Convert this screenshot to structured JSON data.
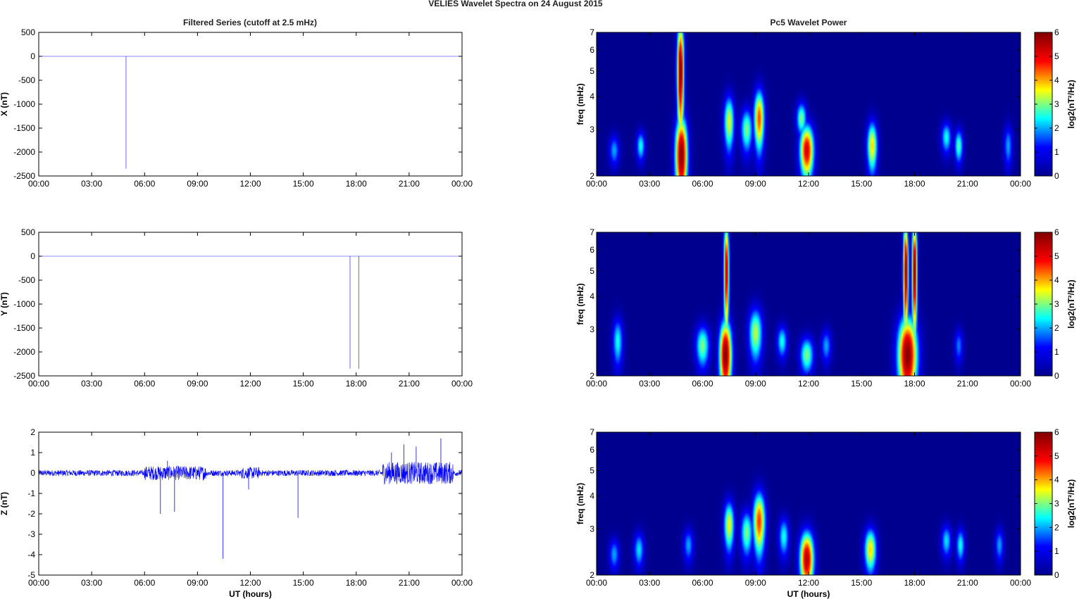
{
  "figure": {
    "title": "VELIES Wavelet Spectra on 24 August    2015",
    "left_title": "Filtered Series (cutoff at 2.5 mHz)",
    "right_title": "Pc5 Wavelet Power",
    "xlabel": "UT (hours)"
  },
  "colors": {
    "trace": "#0000ff",
    "background_spectrogram": "#00008f",
    "colormap": [
      "#00008f",
      "#0000ff",
      "#00ffff",
      "#ffff00",
      "#ff0000",
      "#800000"
    ]
  },
  "chart_data": [
    {
      "type": "line",
      "name": "x-series",
      "ylabel": "X (nT)",
      "xlim": [
        0,
        24
      ],
      "ylim": [
        -2500,
        500
      ],
      "xticks": [
        "00:00",
        "03:00",
        "06:00",
        "09:00",
        "12:00",
        "15:00",
        "18:00",
        "21:00",
        "00:00"
      ],
      "yticks": [
        "500",
        "0",
        "-500",
        "-1000",
        "-1500",
        "-2000",
        "-2500"
      ],
      "ytick_values": [
        500,
        0,
        -500,
        -1000,
        -1500,
        -2000,
        -2500
      ],
      "baseline": 0,
      "spikes": [
        {
          "x": 4.95,
          "y": -2350
        }
      ]
    },
    {
      "type": "line",
      "name": "y-series",
      "ylabel": "Y (nT)",
      "xlim": [
        0,
        24
      ],
      "ylim": [
        -2500,
        500
      ],
      "xticks": [
        "00:00",
        "03:00",
        "06:00",
        "09:00",
        "12:00",
        "15:00",
        "18:00",
        "21:00",
        "00:00"
      ],
      "yticks": [
        "500",
        "0",
        "-500",
        "-1000",
        "-1500",
        "-2000",
        "-2500"
      ],
      "ytick_values": [
        500,
        0,
        -500,
        -1000,
        -1500,
        -2000,
        -2500
      ],
      "baseline": 0,
      "spikes": [
        {
          "x": 17.65,
          "y": -2350
        },
        {
          "x": 18.15,
          "y": -2350
        }
      ]
    },
    {
      "type": "line",
      "name": "z-series",
      "ylabel": "Z (nT)",
      "xlabel": "UT (hours)",
      "xlim": [
        0,
        24
      ],
      "ylim": [
        -5,
        2
      ],
      "xticks": [
        "00:00",
        "03:00",
        "06:00",
        "09:00",
        "12:00",
        "15:00",
        "18:00",
        "21:00",
        "00:00"
      ],
      "yticks": [
        "2",
        "1",
        "0",
        "-1",
        "-2",
        "-3",
        "-4",
        "-5"
      ],
      "ytick_values": [
        2,
        1,
        0,
        -1,
        -2,
        -3,
        -4,
        -5
      ],
      "baseline": 0,
      "spikes": [
        {
          "x": 6.9,
          "y": -2.0
        },
        {
          "x": 7.7,
          "y": -1.9
        },
        {
          "x": 10.45,
          "y": -4.2
        },
        {
          "x": 14.7,
          "y": -2.2
        },
        {
          "x": 11.9,
          "y": -0.8
        },
        {
          "x": 7.3,
          "y": 0.6
        },
        {
          "x": 20.7,
          "y": 1.4
        },
        {
          "x": 21.4,
          "y": 1.3
        },
        {
          "x": 22.8,
          "y": 1.7
        },
        {
          "x": 20.0,
          "y": 1.0
        }
      ],
      "active_windows": [
        {
          "x0": 6.0,
          "x1": 9.5,
          "amplitude": 0.35
        },
        {
          "x0": 11.5,
          "x1": 12.5,
          "amplitude": 0.3
        },
        {
          "x0": 19.5,
          "x1": 23.5,
          "amplitude": 0.55
        }
      ],
      "noise_amplitude": 0.15
    },
    {
      "type": "heatmap",
      "name": "x-wavelet",
      "ylabel": "freq (mHz)",
      "colorbar_label": "log2(nT²/Hz)",
      "xlim": [
        0,
        24
      ],
      "ylim": [
        2,
        7
      ],
      "yscale": "log",
      "clim": [
        0,
        6
      ],
      "xticks": [
        "00:00",
        "03:00",
        "06:00",
        "09:00",
        "12:00",
        "15:00",
        "18:00",
        "21:00",
        "00:00"
      ],
      "yticks": [
        "2",
        "3",
        "4",
        "5",
        "6",
        "7"
      ],
      "ytick_values": [
        2,
        3,
        4,
        5,
        6,
        7
      ],
      "cticks": [
        "0",
        "1",
        "2",
        "3",
        "4",
        "5",
        "6"
      ],
      "blobs": [
        {
          "t": 4.8,
          "f": 2.4,
          "w": 0.35,
          "h": 0.9,
          "p": 6.0
        },
        {
          "t": 4.75,
          "f": 5.0,
          "w": 0.2,
          "h": 2.5,
          "p": 6.0
        },
        {
          "t": 2.5,
          "f": 2.6,
          "w": 0.25,
          "h": 0.35,
          "p": 2.5
        },
        {
          "t": 1.0,
          "f": 2.5,
          "w": 0.3,
          "h": 0.35,
          "p": 2.0
        },
        {
          "t": 7.5,
          "f": 3.2,
          "w": 0.3,
          "h": 0.8,
          "p": 3.5
        },
        {
          "t": 8.5,
          "f": 3.0,
          "w": 0.35,
          "h": 0.6,
          "p": 3.0
        },
        {
          "t": 9.2,
          "f": 3.3,
          "w": 0.3,
          "h": 0.9,
          "p": 4.5
        },
        {
          "t": 11.9,
          "f": 2.5,
          "w": 0.4,
          "h": 0.6,
          "p": 5.2
        },
        {
          "t": 11.6,
          "f": 3.3,
          "w": 0.3,
          "h": 0.5,
          "p": 3.0
        },
        {
          "t": 15.6,
          "f": 2.6,
          "w": 0.3,
          "h": 0.6,
          "p": 3.8
        },
        {
          "t": 19.8,
          "f": 2.8,
          "w": 0.3,
          "h": 0.4,
          "p": 2.5
        },
        {
          "t": 20.5,
          "f": 2.6,
          "w": 0.25,
          "h": 0.4,
          "p": 2.8
        },
        {
          "t": 23.3,
          "f": 2.6,
          "w": 0.25,
          "h": 0.5,
          "p": 2.0
        }
      ]
    },
    {
      "type": "heatmap",
      "name": "y-wavelet",
      "ylabel": "freq (mHz)",
      "colorbar_label": "log2(nT²/Hz)",
      "xlim": [
        0,
        24
      ],
      "ylim": [
        2,
        7
      ],
      "yscale": "log",
      "clim": [
        0,
        6
      ],
      "xticks": [
        "00:00",
        "03:00",
        "06:00",
        "09:00",
        "12:00",
        "15:00",
        "18:00",
        "21:00",
        "00:00"
      ],
      "yticks": [
        "2",
        "3",
        "4",
        "5",
        "6",
        "7"
      ],
      "ytick_values": [
        2,
        3,
        4,
        5,
        6,
        7
      ],
      "cticks": [
        "0",
        "1",
        "2",
        "3",
        "4",
        "5",
        "6"
      ],
      "blobs": [
        {
          "t": 7.3,
          "f": 2.4,
          "w": 0.35,
          "h": 0.8,
          "p": 6.0
        },
        {
          "t": 7.35,
          "f": 5.0,
          "w": 0.15,
          "h": 2.5,
          "p": 5.5
        },
        {
          "t": 17.6,
          "f": 2.4,
          "w": 0.55,
          "h": 0.9,
          "p": 6.0
        },
        {
          "t": 17.5,
          "f": 5.0,
          "w": 0.15,
          "h": 2.5,
          "p": 6.0
        },
        {
          "t": 18.0,
          "f": 5.0,
          "w": 0.15,
          "h": 2.5,
          "p": 6.0
        },
        {
          "t": 1.2,
          "f": 2.7,
          "w": 0.3,
          "h": 0.6,
          "p": 2.5
        },
        {
          "t": 6.0,
          "f": 2.6,
          "w": 0.4,
          "h": 0.5,
          "p": 3.0
        },
        {
          "t": 9.0,
          "f": 2.9,
          "w": 0.4,
          "h": 0.7,
          "p": 3.3
        },
        {
          "t": 11.9,
          "f": 2.4,
          "w": 0.4,
          "h": 0.4,
          "p": 3.0
        },
        {
          "t": 10.5,
          "f": 2.7,
          "w": 0.3,
          "h": 0.4,
          "p": 2.5
        },
        {
          "t": 13.0,
          "f": 2.6,
          "w": 0.3,
          "h": 0.4,
          "p": 2.0
        },
        {
          "t": 20.5,
          "f": 2.6,
          "w": 0.25,
          "h": 0.4,
          "p": 1.8
        }
      ]
    },
    {
      "type": "heatmap",
      "name": "z-wavelet",
      "ylabel": "freq (mHz)",
      "xlabel": "UT (hours)",
      "colorbar_label": "log2(nT²/Hz)",
      "xlim": [
        0,
        24
      ],
      "ylim": [
        2,
        7
      ],
      "yscale": "log",
      "clim": [
        0,
        6
      ],
      "xticks": [
        "00:00",
        "03:00",
        "06:00",
        "09:00",
        "12:00",
        "15:00",
        "18:00",
        "21:00",
        "00:00"
      ],
      "yticks": [
        "2",
        "3",
        "4",
        "5",
        "6",
        "7"
      ],
      "ytick_values": [
        2,
        3,
        4,
        5,
        6,
        7
      ],
      "cticks": [
        "0",
        "1",
        "2",
        "3",
        "4",
        "5",
        "6"
      ],
      "blobs": [
        {
          "t": 11.9,
          "f": 2.3,
          "w": 0.4,
          "h": 0.6,
          "p": 5.5
        },
        {
          "t": 9.2,
          "f": 3.2,
          "w": 0.35,
          "h": 0.9,
          "p": 4.6
        },
        {
          "t": 7.5,
          "f": 3.1,
          "w": 0.3,
          "h": 0.7,
          "p": 3.6
        },
        {
          "t": 8.5,
          "f": 2.9,
          "w": 0.35,
          "h": 0.6,
          "p": 3.0
        },
        {
          "t": 15.5,
          "f": 2.5,
          "w": 0.35,
          "h": 0.5,
          "p": 3.8
        },
        {
          "t": 2.4,
          "f": 2.5,
          "w": 0.3,
          "h": 0.4,
          "p": 2.3
        },
        {
          "t": 1.0,
          "f": 2.4,
          "w": 0.3,
          "h": 0.35,
          "p": 2.0
        },
        {
          "t": 5.2,
          "f": 2.6,
          "w": 0.3,
          "h": 0.4,
          "p": 2.0
        },
        {
          "t": 10.6,
          "f": 2.8,
          "w": 0.3,
          "h": 0.5,
          "p": 2.5
        },
        {
          "t": 19.8,
          "f": 2.7,
          "w": 0.3,
          "h": 0.4,
          "p": 2.3
        },
        {
          "t": 20.6,
          "f": 2.6,
          "w": 0.25,
          "h": 0.4,
          "p": 2.5
        },
        {
          "t": 22.8,
          "f": 2.6,
          "w": 0.25,
          "h": 0.4,
          "p": 2.0
        }
      ]
    }
  ]
}
